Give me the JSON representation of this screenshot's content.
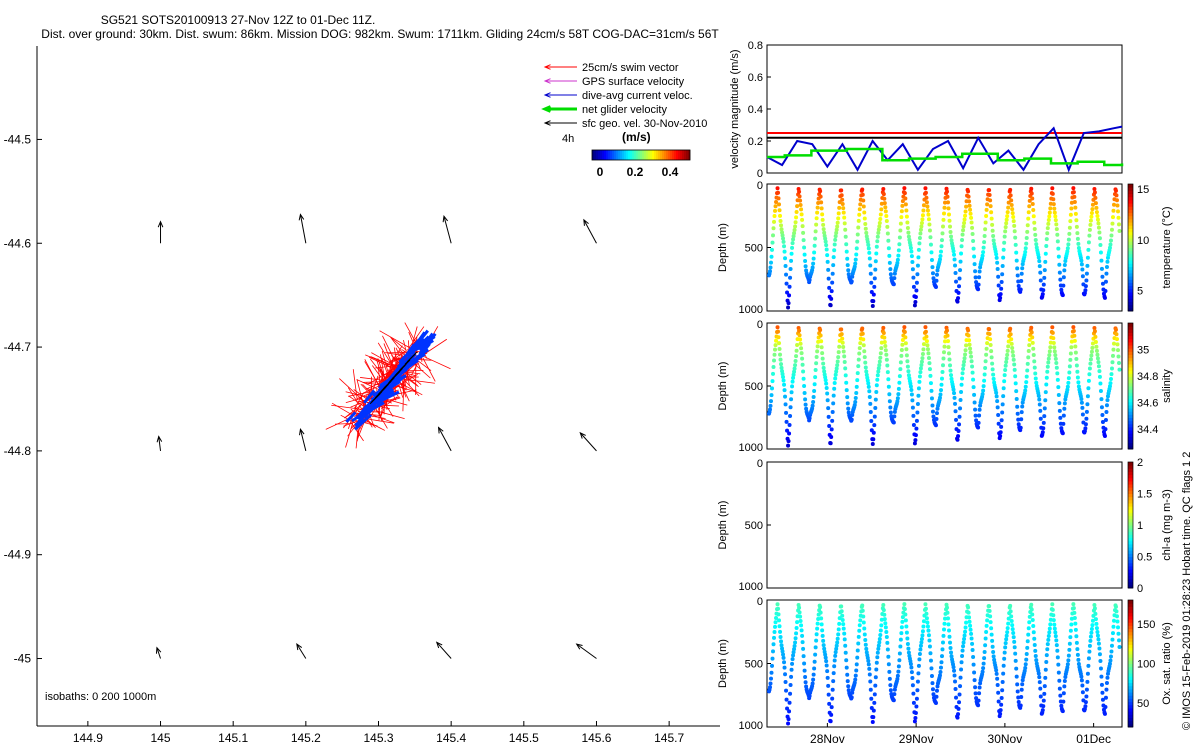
{
  "title": {
    "line1": "SG521 SOTS20100913 27-Nov 12Z to 01-Dec 11Z.",
    "line2": "Dist. over ground: 30km. Dist. swum: 86km. Mission DOG: 982km. Swum: 1711km. Gliding 24cm/s 58T COG-DAC=31cm/s 56T"
  },
  "copyright": "© IMOS 15-Feb-2019 01:28:23 Hobart time. QC flags 1  2",
  "legend": {
    "swim": "25cm/s swim vector",
    "gps": "GPS surface velocity",
    "dac": "dive-avg current veloc.",
    "net": "net glider velocity",
    "geo": "sfc geo. vel. 30-Nov-2010",
    "interval": "4h",
    "units": "(m/s)",
    "colorbar_ticks": [
      "0",
      "0.2",
      "0.4"
    ]
  },
  "colors": {
    "swim": "#ff0000",
    "gps": "#cc33cc",
    "dac": "#0000cc",
    "net": "#00dd00",
    "geo": "#000000",
    "cloud": "#ff0000",
    "cloud_blue": "#0033ff"
  },
  "chart_data": [
    {
      "type": "scatter",
      "name": "map",
      "xlim": [
        144.83,
        145.77
      ],
      "ylim": [
        -45.065,
        -44.41
      ],
      "xticks": [
        144.9,
        145,
        145.1,
        145.2,
        145.3,
        145.4,
        145.5,
        145.6,
        145.7
      ],
      "xtick_labels": [
        "144.9",
        "145",
        "145.1",
        "145.2",
        "145.3",
        "145.4",
        "145.5",
        "145.6",
        "145.7"
      ],
      "yticks": [
        -44.5,
        -44.6,
        -44.7,
        -44.8,
        -44.9,
        -45
      ],
      "ytick_labels": [
        "-44.5",
        "-44.6",
        "-44.7",
        "-44.8",
        "-44.9",
        "-45"
      ],
      "isobaths_label": "isobaths: 0   200  1000m",
      "geo_vectors": [
        {
          "lon": 145.0,
          "lat": -44.6,
          "u": 0.0,
          "v": 0.12
        },
        {
          "lon": 145.2,
          "lat": -44.6,
          "u": -0.03,
          "v": 0.16
        },
        {
          "lon": 145.4,
          "lat": -44.6,
          "u": -0.04,
          "v": 0.15
        },
        {
          "lon": 145.6,
          "lat": -44.6,
          "u": -0.07,
          "v": 0.13
        },
        {
          "lon": 145.0,
          "lat": -44.8,
          "u": -0.01,
          "v": 0.08
        },
        {
          "lon": 145.2,
          "lat": -44.8,
          "u": -0.03,
          "v": 0.12
        },
        {
          "lon": 145.4,
          "lat": -44.8,
          "u": -0.07,
          "v": 0.13
        },
        {
          "lon": 145.6,
          "lat": -44.8,
          "u": -0.09,
          "v": 0.1
        },
        {
          "lon": 145.0,
          "lat": -45.0,
          "u": -0.02,
          "v": 0.06
        },
        {
          "lon": 145.2,
          "lat": -45.0,
          "u": -0.05,
          "v": 0.08
        },
        {
          "lon": 145.4,
          "lat": -45.0,
          "u": -0.08,
          "v": 0.09
        },
        {
          "lon": 145.6,
          "lat": -45.0,
          "u": -0.11,
          "v": 0.08
        }
      ],
      "glider_track": {
        "lon_range": [
          145.25,
          145.37
        ],
        "lat_range": [
          -44.785,
          -44.69
        ]
      }
    },
    {
      "type": "line",
      "name": "velocity",
      "ylabel": "velocity magnitude (m/s)",
      "ylim": [
        0,
        0.8
      ],
      "yticks": [
        0,
        0.2,
        0.4,
        0.6,
        0.8
      ],
      "ytick_labels": [
        "0",
        "0.2",
        "0.4",
        "0.6",
        "0.8"
      ],
      "xlim": [
        0,
        4.0
      ],
      "series": [
        {
          "name": "25cm/s swim",
          "color": "#ff0000",
          "x": [
            0,
            4.0
          ],
          "values": [
            0.25,
            0.25
          ]
        },
        {
          "name": "sfc geo",
          "color": "#000000",
          "x": [
            0,
            4.0
          ],
          "values": [
            0.22,
            0.22
          ]
        },
        {
          "name": "dive-avg current",
          "color": "#0000cc",
          "x": [
            0,
            0.17,
            0.34,
            0.51,
            0.68,
            0.85,
            1.02,
            1.19,
            1.36,
            1.53,
            1.7,
            1.87,
            2.04,
            2.21,
            2.38,
            2.55,
            2.72,
            2.89,
            3.06,
            3.23,
            3.4,
            3.57,
            3.74,
            3.91,
            4.0
          ],
          "values": [
            0.1,
            0.05,
            0.2,
            0.18,
            0.04,
            0.18,
            0.02,
            0.2,
            0.08,
            0.18,
            0.02,
            0.15,
            0.2,
            0.03,
            0.22,
            0.06,
            0.14,
            0.02,
            0.18,
            0.28,
            0.02,
            0.25,
            0.26,
            0.28,
            0.29
          ]
        },
        {
          "name": "net glider",
          "color": "#00dd00",
          "x": [
            0,
            0.2,
            0.5,
            0.9,
            1.3,
            1.6,
            1.9,
            2.2,
            2.6,
            2.9,
            3.2,
            3.5,
            3.8,
            4.0
          ],
          "values": [
            0.1,
            0.11,
            0.14,
            0.15,
            0.08,
            0.09,
            0.1,
            0.12,
            0.08,
            0.09,
            0.06,
            0.07,
            0.05,
            0.06
          ]
        }
      ]
    },
    {
      "type": "scatter",
      "name": "temperature",
      "ylabel": "Depth (m)",
      "cbar_label": "temperature (°C)",
      "ylim": [
        1000,
        0
      ],
      "yticks": [
        0,
        500,
        1000
      ],
      "cbar_range": [
        3,
        15.5
      ],
      "cbar_ticks": [
        5,
        10,
        15
      ],
      "profiles": 33,
      "max_depth": 1000,
      "surface_value": 14.5,
      "deep_value": 3.5
    },
    {
      "type": "scatter",
      "name": "salinity",
      "ylabel": "Depth (m)",
      "cbar_label": "salinity",
      "ylim": [
        1000,
        0
      ],
      "yticks": [
        0,
        500,
        1000
      ],
      "cbar_range": [
        34.25,
        35.2
      ],
      "cbar_ticks": [
        34.4,
        34.6,
        34.8,
        35
      ],
      "profiles": 33,
      "max_depth": 1000,
      "surface_value": 35.05,
      "deep_value": 34.35
    },
    {
      "type": "scatter",
      "name": "chl-a",
      "ylabel": "Depth (m)",
      "cbar_label": "chl-a (mg m-3)",
      "ylim": [
        1000,
        0
      ],
      "yticks": [
        0,
        500,
        1000
      ],
      "cbar_range": [
        0,
        2
      ],
      "cbar_ticks": [
        0,
        0.5,
        1,
        1.5,
        2
      ],
      "profiles": 0
    },
    {
      "type": "scatter",
      "name": "oxygen",
      "ylabel": "Depth (m)",
      "cbar_label": "Ox. sat. ratio (%)",
      "ylim": [
        1000,
        0
      ],
      "yticks": [
        0,
        500,
        1000
      ],
      "cbar_range": [
        20,
        180
      ],
      "cbar_ticks": [
        50,
        100,
        150
      ],
      "profiles": 33,
      "max_depth": 1000,
      "surface_value": 95,
      "deep_value": 40,
      "xtick_labels": [
        "28Nov",
        "29Nov",
        "30Nov",
        "01Dec"
      ],
      "xticks": [
        0.5,
        1.5,
        2.5,
        3.5
      ]
    }
  ]
}
